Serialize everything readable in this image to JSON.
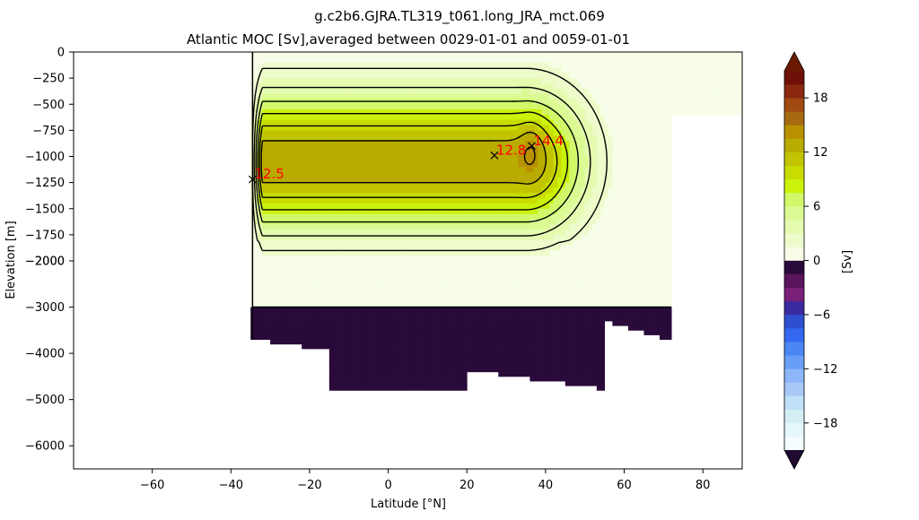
{
  "chart_data": {
    "type": "contourf",
    "title": "g.c2b6.GJRA.TL319_t061.long_JRA_mct.069",
    "subtitle": "Atlantic MOC [Sv],averaged between 0029-01-01 and 0059-01-01",
    "xlabel": "Latitude [°N]",
    "ylabel": "Elevation [m]",
    "xlim": [
      -80,
      90
    ],
    "x_ticks": [
      -60,
      -40,
      -20,
      0,
      20,
      40,
      60,
      80
    ],
    "y_ticks_upper": [
      0,
      -250,
      -500,
      -750,
      -1000,
      -1250,
      -1500,
      -1750,
      -2000
    ],
    "y_ticks_lower": [
      -2000,
      -3000,
      -4000,
      -5000,
      -6000
    ],
    "y_axis_break": -2000,
    "ylim": [
      -6500,
      0
    ],
    "colorbar": {
      "label": "[Sv]",
      "ticks": [
        18,
        12,
        6,
        0,
        -6,
        -12,
        -18
      ],
      "levels": [
        -21,
        -19.5,
        -18,
        -16.5,
        -15,
        -13.5,
        -12,
        -10.5,
        -9,
        -7.5,
        -6,
        -4.5,
        -3,
        -1.5,
        0,
        1.5,
        3,
        4.5,
        6,
        7.5,
        9,
        10.5,
        12,
        13.5,
        15,
        16.5,
        18,
        19.5,
        21
      ],
      "extend": "both"
    },
    "colors": {
      "neg_colors": [
        "#2a0a3a",
        "#5a145e",
        "#7a1f7a",
        "#3a2aa0",
        "#2f4fd0",
        "#3468f0",
        "#4a86f4",
        "#6a9ef6",
        "#8cb6f8",
        "#a8c8f8",
        "#bfe0f6",
        "#d4eef6",
        "#e6f7fb",
        "#f4fdff"
      ],
      "pos_colors": [
        "#f7fde8",
        "#eefccc",
        "#e4fbb0",
        "#dcfa94",
        "#d2f86a",
        "#cbf20a",
        "#c8dc00",
        "#c2c400",
        "#b9ab00",
        "#b89100",
        "#a76a10",
        "#a14a12",
        "#8a2810",
        "#6e1008"
      ],
      "max_color": "#6a1a00",
      "min_color": "#1f0a30"
    },
    "annotations": [
      {
        "x": -34.5,
        "y": -1220,
        "label": "12.5",
        "color": "#ff0000"
      },
      {
        "x": 27,
        "y": -990,
        "label": "12.8",
        "color": "#ff0000"
      },
      {
        "x": 36.5,
        "y": -900,
        "label": "14.4",
        "color": "#ff0000"
      }
    ]
  }
}
